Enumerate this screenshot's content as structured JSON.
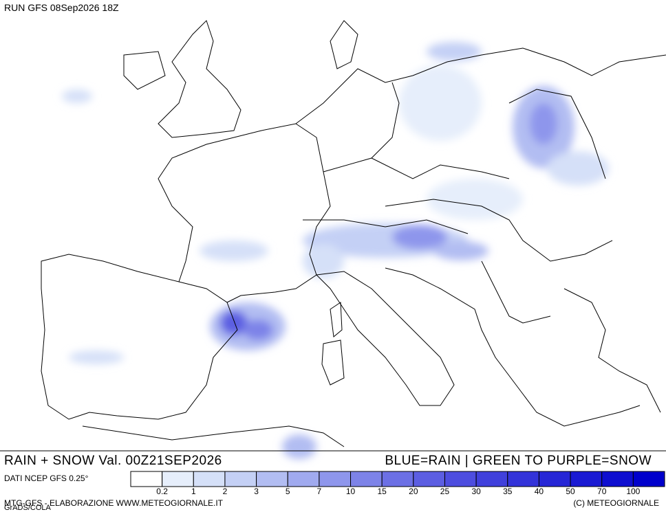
{
  "header": {
    "run": "RUN GFS 08Sep2026 18Z"
  },
  "footer": {
    "field": "RAIN + SNOW Val. 00Z21SEP2026",
    "key": "BLUE=RAIN | GREEN TO PURPLE=SNOW",
    "source": "DATI NCEP GFS 0.25°",
    "credit": "MTG-GFS - ELABORAZIONE WWW.METEOGIORNALE.IT",
    "copyright": "(C) METEOGIORNALE",
    "software": "GrADS/COLA"
  },
  "legend": {
    "thresholds": [
      0.2,
      1,
      2,
      3,
      5,
      7,
      10,
      15,
      20,
      25,
      30,
      35,
      40,
      50,
      70,
      100
    ],
    "colors": [
      "#ffffff",
      "#e6eefb",
      "#d5e0f8",
      "#c4d0f5",
      "#b2bdf2",
      "#a0aaef",
      "#8e96ec",
      "#7d83e8",
      "#6c70e5",
      "#5c5ee2",
      "#4d4ddf",
      "#4040dc",
      "#3333d9",
      "#2626d6",
      "#1a1ad3",
      "#0e0ed0",
      "#0000cc"
    ]
  }
}
